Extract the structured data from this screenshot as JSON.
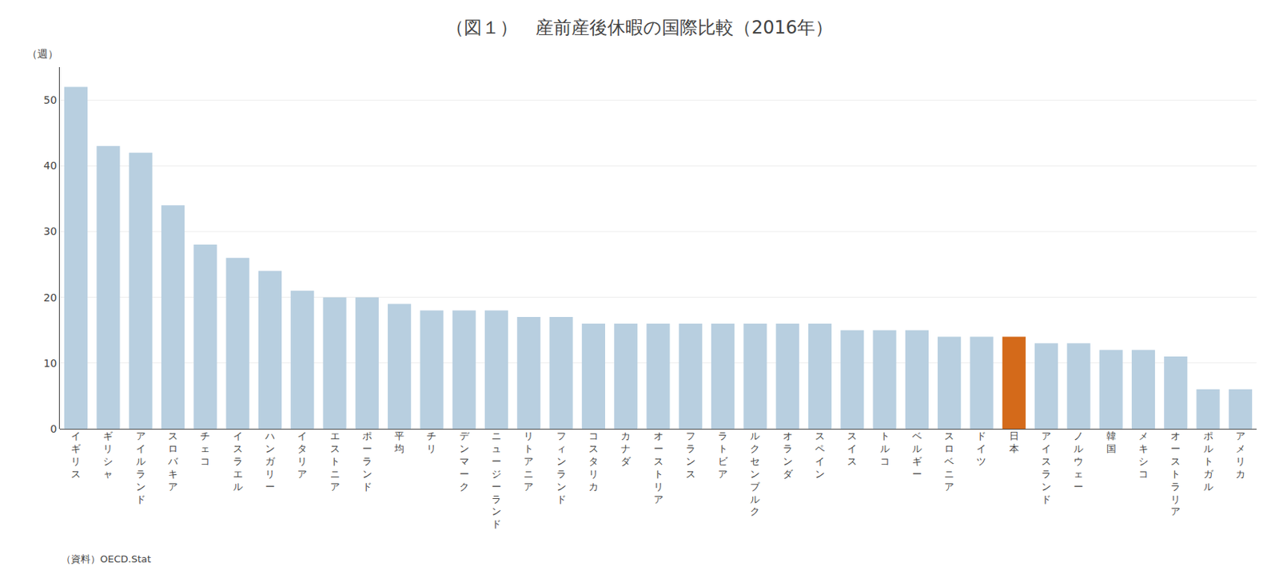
{
  "chart_data": {
    "type": "bar",
    "title": "（図１）　産前産後休暇の国際比較（2016年）",
    "ylabel": "（週）",
    "annotations": [
      "（資料）OECD.Stat"
    ],
    "categories": [
      "イギリス",
      "ギリシャ",
      "アイルランド",
      "スロバキア",
      "チェコ",
      "イスラエル",
      "ハンガリー",
      "イタリア",
      "エストニア",
      "ポーランド",
      "平均",
      "チリ",
      "デンマーク",
      "ニュージーランド",
      "リトアニア",
      "フィンランド",
      "コスタリカ",
      "カナダ",
      "オーストリア",
      "フランス",
      "ラトビア",
      "ルクセンブルク",
      "オランダ",
      "スペイン",
      "スイス",
      "トルコ",
      "ベルギー",
      "スロベニア",
      "ドイツ",
      "日本",
      "アイスランド",
      "ノルウェー",
      "韓国",
      "メキシコ",
      "オーストラリア",
      "ポルトガル",
      "アメリカ"
    ],
    "values": [
      52,
      43,
      42,
      34,
      28,
      26,
      24,
      21,
      20,
      20,
      19,
      18,
      18,
      18,
      17,
      17,
      16,
      16,
      16,
      16,
      16,
      16,
      16,
      16,
      15,
      15,
      15,
      14,
      14,
      14,
      13,
      13,
      12,
      12,
      11,
      6,
      6
    ],
    "colors": [
      "#b8cfe0",
      "#b8cfe0",
      "#b8cfe0",
      "#b8cfe0",
      "#b8cfe0",
      "#b8cfe0",
      "#b8cfe0",
      "#b8cfe0",
      "#b8cfe0",
      "#b8cfe0",
      "#b8cfe0",
      "#b8cfe0",
      "#b8cfe0",
      "#b8cfe0",
      "#b8cfe0",
      "#b8cfe0",
      "#b8cfe0",
      "#b8cfe0",
      "#b8cfe0",
      "#b8cfe0",
      "#b8cfe0",
      "#b8cfe0",
      "#b8cfe0",
      "#b8cfe0",
      "#b8cfe0",
      "#b8cfe0",
      "#b8cfe0",
      "#b8cfe0",
      "#b8cfe0",
      "#d46a1a",
      "#b8cfe0",
      "#b8cfe0",
      "#b8cfe0",
      "#b8cfe0",
      "#b8cfe0",
      "#b8cfe0",
      "#b8cfe0"
    ],
    "ylim": [
      0,
      55
    ],
    "yticks": [
      0,
      10,
      20,
      30,
      40,
      50
    ],
    "grid": true
  }
}
